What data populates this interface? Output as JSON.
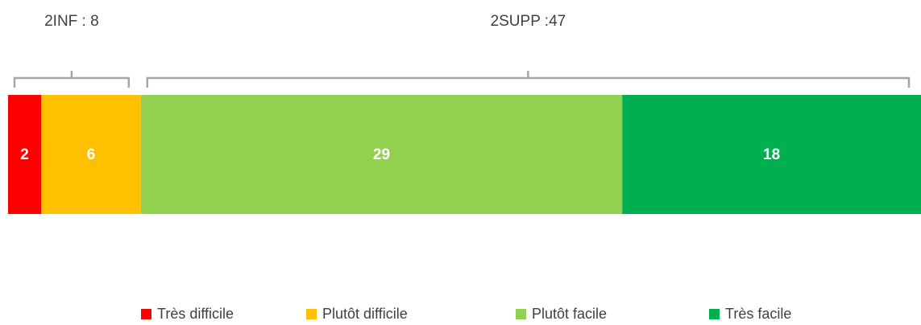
{
  "chart_data": {
    "type": "bar",
    "orientation": "horizontal",
    "stacked": true,
    "categories": [
      null
    ],
    "series": [
      {
        "name": "Très difficile",
        "color": "#ff0000",
        "values": [
          2
        ]
      },
      {
        "name": "Plutôt difficile",
        "color": "#ffc000",
        "values": [
          6
        ]
      },
      {
        "name": "Plutôt facile",
        "color": "#92d050",
        "values": [
          29
        ]
      },
      {
        "name": "Très facile",
        "color": "#00b050",
        "values": [
          18
        ]
      }
    ],
    "annotations": [
      "2INF : 8",
      "2SUPP :47"
    ],
    "xlim": [
      0,
      55
    ],
    "legend": "bottom"
  }
}
